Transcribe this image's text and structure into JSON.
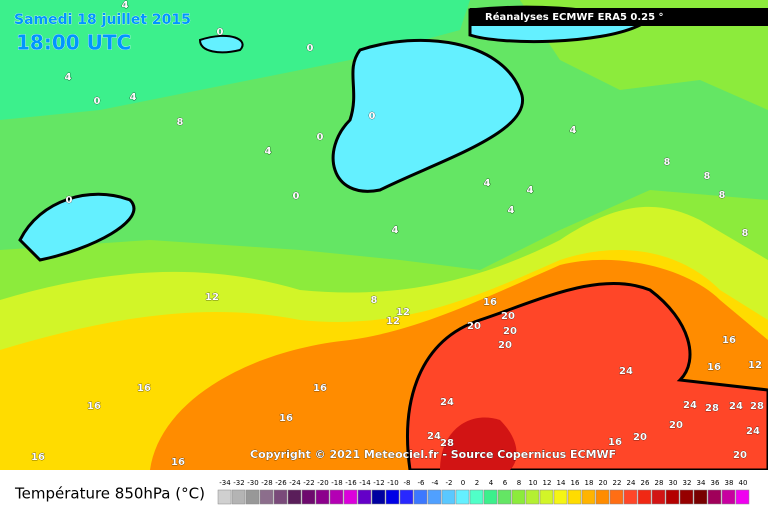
{
  "header": {
    "date": "Samedi 18 juillet 2015",
    "time": "18:00 UTC",
    "source": "Réanalyses ECMWF ERA5 0.25 °"
  },
  "copyright": "Copyright © 2021 Meteociel.fr - Source Copernicus ECMWF",
  "contour_labels": [
    4,
    0,
    0,
    4,
    0,
    4,
    8,
    0,
    0,
    4,
    0,
    0,
    4,
    4,
    4,
    4,
    4,
    8,
    8,
    8,
    8,
    12,
    8,
    12,
    12,
    16,
    20,
    20,
    20,
    20,
    16,
    16,
    12,
    24,
    24,
    24,
    28,
    24,
    28,
    20,
    24,
    28,
    20,
    16,
    24,
    16,
    16,
    16,
    16,
    16,
    16,
    20
  ],
  "legend": {
    "title": "Température 850hPa (°C)",
    "ticks": [
      -34,
      -32,
      -30,
      -28,
      -26,
      -24,
      -22,
      -20,
      -18,
      -16,
      -14,
      -12,
      -10,
      -8,
      -6,
      -4,
      -2,
      0,
      2,
      4,
      6,
      8,
      10,
      12,
      14,
      16,
      18,
      20,
      22,
      24,
      26,
      28,
      30,
      32,
      34,
      36,
      38,
      40
    ],
    "colors": [
      "#d0d0d0",
      "#b4b4b4",
      "#989898",
      "#8c6e8c",
      "#7a4a7a",
      "#5a1e5a",
      "#6e0a6e",
      "#8c008c",
      "#b400b4",
      "#dc00dc",
      "#6400c8",
      "#0000a0",
      "#0000e6",
      "#2828ff",
      "#3c78ff",
      "#50a0ff",
      "#5ac8ff",
      "#64f0ff",
      "#50ffc8",
      "#3cf08c",
      "#64e664",
      "#8ceb3c",
      "#b4f032",
      "#d2f528",
      "#f5f514",
      "#ffdc00",
      "#ffb400",
      "#ff8c00",
      "#ff6e14",
      "#ff4628",
      "#f02814",
      "#d21414",
      "#b40000",
      "#960000",
      "#780000",
      "#a0005a",
      "#c800a0",
      "#f000f0"
    ]
  }
}
